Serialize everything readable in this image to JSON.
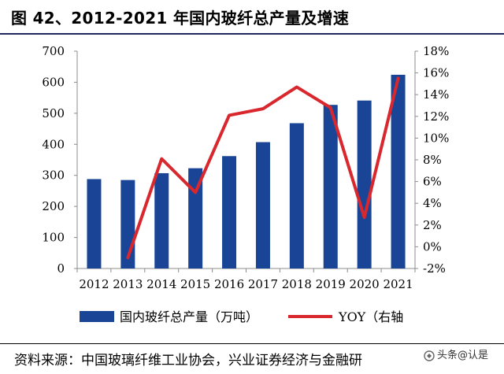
{
  "header": {
    "title": "图 42、2012-2021 年国内玻纤总产量及增速"
  },
  "chart_data": {
    "type": "bar",
    "categories": [
      "2012",
      "2013",
      "2014",
      "2015",
      "2016",
      "2017",
      "2018",
      "2019",
      "2020",
      "2021"
    ],
    "series": [
      {
        "name": "国内玻纤总产量（万吨）",
        "kind": "bar",
        "axis": "left",
        "color": "#1a4596",
        "values": [
          288,
          285,
          307,
          323,
          362,
          407,
          468,
          527,
          541,
          624
        ]
      },
      {
        "name": "YOY（右轴",
        "kind": "line",
        "axis": "right",
        "color": "#d9272e",
        "values": [
          null,
          -1.0,
          8.1,
          5.0,
          12.1,
          12.7,
          14.7,
          12.8,
          2.7,
          15.5
        ]
      }
    ],
    "left_axis": {
      "min": 0,
      "max": 700,
      "ticks": [
        0,
        100,
        200,
        300,
        400,
        500,
        600,
        700
      ],
      "tick_labels": [
        "0",
        "100",
        "200",
        "300",
        "400",
        "500",
        "600",
        "700"
      ]
    },
    "right_axis": {
      "min": -2,
      "max": 18,
      "ticks": [
        -2,
        0,
        2,
        4,
        6,
        8,
        10,
        12,
        14,
        16,
        18
      ],
      "tick_labels": [
        "-2%",
        "0%",
        "2%",
        "4%",
        "6%",
        "8%",
        "10%",
        "12%",
        "14%",
        "16%",
        "18%"
      ]
    },
    "grid": false,
    "legend": "bottom"
  },
  "footer": {
    "source": "资料来源：中国玻璃纤维工业协会，兴业证券经济与金融研",
    "watermark": "头条@认是"
  }
}
